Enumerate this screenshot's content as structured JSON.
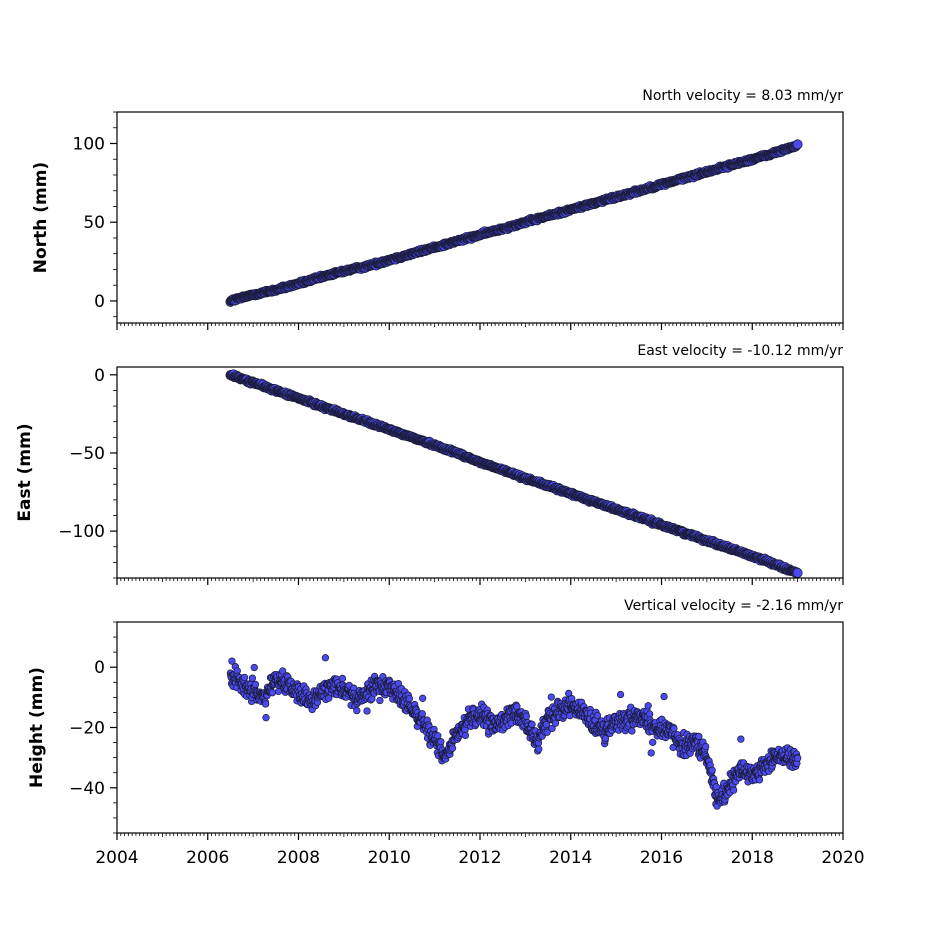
{
  "chart_data": [
    {
      "type": "scatter",
      "title": "North velocity = 8.03 mm/yr",
      "xlabel": "",
      "ylabel": "North (mm)",
      "xlim": [
        2004,
        2020
      ],
      "ylim": [
        -14,
        120
      ],
      "xticks": [
        "2004",
        "2006",
        "2008",
        "2010",
        "2012",
        "2014",
        "2016",
        "2018",
        "2020"
      ],
      "yticks": [
        {
          "value": 0,
          "label": "0"
        },
        {
          "value": 50,
          "label": "50"
        },
        {
          "value": 100,
          "label": "100"
        }
      ],
      "grid": false,
      "marker_color": "#4a4af0",
      "edge_color": "#1a1a33",
      "series": [
        {
          "x": [
            2006.5,
            2007.0,
            2007.5,
            2008.0,
            2008.5,
            2009.0,
            2009.5,
            2010.0,
            2010.5,
            2011.0,
            2011.5,
            2012.0,
            2012.5,
            2013.0,
            2013.5,
            2014.0,
            2014.5,
            2015.0,
            2015.5,
            2016.0,
            2016.5,
            2017.0,
            2017.5,
            2018.0,
            2018.5,
            2019.0
          ],
          "y": [
            0,
            4,
            7,
            11,
            15,
            19,
            22,
            26,
            30,
            34,
            38,
            42,
            46,
            50,
            54,
            58,
            62,
            66,
            70,
            74,
            78,
            82,
            86,
            90,
            94,
            99
          ]
        }
      ]
    },
    {
      "type": "scatter",
      "title": "East velocity = -10.12 mm/yr",
      "xlabel": "",
      "ylabel": "East (mm)",
      "xlim": [
        2004,
        2020
      ],
      "ylim": [
        -130,
        5
      ],
      "xticks": [
        "2004",
        "2006",
        "2008",
        "2010",
        "2012",
        "2014",
        "2016",
        "2018",
        "2020"
      ],
      "yticks": [
        {
          "value": 0,
          "label": "0"
        },
        {
          "value": -50,
          "label": "−50"
        },
        {
          "value": -100,
          "label": "−100"
        }
      ],
      "grid": false,
      "marker_color": "#4a4af0",
      "edge_color": "#1a1a33",
      "series": [
        {
          "x": [
            2006.5,
            2007.0,
            2007.5,
            2008.0,
            2008.5,
            2009.0,
            2009.5,
            2010.0,
            2010.5,
            2011.0,
            2011.5,
            2012.0,
            2012.5,
            2013.0,
            2013.5,
            2014.0,
            2014.5,
            2015.0,
            2015.5,
            2016.0,
            2016.5,
            2017.0,
            2017.5,
            2018.0,
            2018.5,
            2019.0
          ],
          "y": [
            0,
            -5,
            -10,
            -15,
            -20,
            -25,
            -30,
            -35,
            -40,
            -45,
            -50,
            -56,
            -61,
            -66,
            -71,
            -76,
            -81,
            -86,
            -91,
            -96,
            -101,
            -106,
            -111,
            -116,
            -121,
            -127
          ]
        }
      ]
    },
    {
      "type": "scatter",
      "title": "Vertical velocity = -2.16 mm/yr",
      "xlabel": "",
      "ylabel": "Height (mm)",
      "xlim": [
        2004,
        2020
      ],
      "ylim": [
        -55,
        15
      ],
      "xticks": [
        "2004",
        "2006",
        "2008",
        "2010",
        "2012",
        "2014",
        "2016",
        "2018",
        "2020"
      ],
      "yticks": [
        {
          "value": 0,
          "label": "0"
        },
        {
          "value": -20,
          "label": "−20"
        },
        {
          "value": -40,
          "label": "−40"
        }
      ],
      "grid": false,
      "marker_color": "#4a4af0",
      "edge_color": "#1a1a33",
      "series": [
        {
          "x": [
            2006.5,
            2006.75,
            2007.0,
            2007.25,
            2007.5,
            2007.75,
            2008.0,
            2008.25,
            2008.5,
            2008.75,
            2009.0,
            2009.25,
            2009.5,
            2009.75,
            2010.0,
            2010.25,
            2010.5,
            2010.75,
            2011.0,
            2011.25,
            2011.5,
            2011.75,
            2012.0,
            2012.25,
            2012.5,
            2012.75,
            2013.0,
            2013.25,
            2013.5,
            2013.75,
            2014.0,
            2014.25,
            2014.5,
            2014.75,
            2015.0,
            2015.25,
            2015.5,
            2015.75,
            2016.0,
            2016.25,
            2016.5,
            2016.75,
            2017.0,
            2017.25,
            2017.5,
            2017.75,
            2018.0,
            2018.25,
            2018.5,
            2018.75,
            2019.0
          ],
          "y": [
            -3,
            -6,
            -8,
            -10,
            -4,
            -6,
            -8,
            -12,
            -9,
            -5,
            -7,
            -11,
            -9,
            -5,
            -6,
            -10,
            -14,
            -18,
            -24,
            -31,
            -22,
            -17,
            -16,
            -19,
            -18,
            -15,
            -18,
            -25,
            -17,
            -14,
            -12,
            -15,
            -19,
            -22,
            -17,
            -18,
            -15,
            -19,
            -20,
            -22,
            -26,
            -25,
            -30,
            -45,
            -40,
            -34,
            -36,
            -33,
            -30,
            -29,
            -31
          ]
        }
      ]
    }
  ]
}
